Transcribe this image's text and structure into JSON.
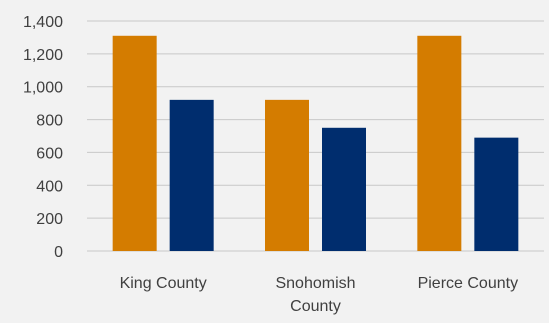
{
  "chart_data": {
    "type": "bar",
    "categories": [
      [
        "King County"
      ],
      [
        "Snohomish",
        "County"
      ],
      [
        "Pierce County"
      ]
    ],
    "series": [
      {
        "values": [
          1310,
          920,
          1310
        ],
        "color": "#d47c00"
      },
      {
        "values": [
          920,
          750,
          690
        ],
        "color": "#002d6e"
      }
    ],
    "ylim": [
      0,
      1400
    ],
    "yticks": [
      0,
      200,
      400,
      600,
      800,
      1000,
      1200,
      1400
    ],
    "ytick_labels": [
      "0",
      "200",
      "400",
      "600",
      "800",
      "1,000",
      "1,200",
      "1,400"
    ],
    "grid": true,
    "grid_color": "#c8c8c8"
  }
}
